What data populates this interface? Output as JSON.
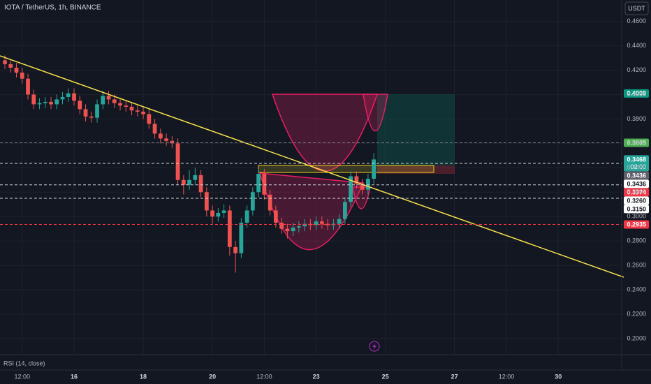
{
  "chart_data": {
    "type": "candlestick",
    "title": "IOTA / TetherUS, 1h, BINANCE",
    "currency": "USDT",
    "indicator": "RSI (14, close)",
    "countdown": "02:00",
    "up_color": "#26a69a",
    "down_color": "#ef5350",
    "grid": true,
    "x": [
      0,
      4,
      8,
      12,
      16,
      20,
      24,
      28,
      32,
      36,
      40,
      44,
      48,
      52,
      56,
      60,
      64,
      68,
      72,
      76,
      80,
      84,
      88,
      92,
      96,
      100,
      104,
      108,
      112,
      116,
      120,
      124,
      128,
      132,
      136,
      140,
      144,
      148,
      152,
      156,
      160,
      164,
      168,
      172,
      176,
      180,
      184,
      188,
      192,
      196,
      200,
      204,
      208,
      212,
      216,
      220,
      224,
      228,
      232,
      236,
      240,
      244,
      248,
      252,
      256
    ],
    "open": [
      0.428,
      0.425,
      0.422,
      0.418,
      0.413,
      0.4,
      0.392,
      0.393,
      0.394,
      0.392,
      0.396,
      0.398,
      0.401,
      0.395,
      0.388,
      0.382,
      0.381,
      0.392,
      0.399,
      0.396,
      0.393,
      0.391,
      0.39,
      0.387,
      0.386,
      0.384,
      0.376,
      0.368,
      0.364,
      0.362,
      0.36,
      0.33,
      0.326,
      0.33,
      0.334,
      0.32,
      0.305,
      0.3,
      0.303,
      0.305,
      0.275,
      0.27,
      0.295,
      0.305,
      0.32,
      0.335,
      0.318,
      0.305,
      0.295,
      0.29,
      0.288,
      0.291,
      0.292,
      0.294,
      0.293,
      0.296,
      0.294,
      0.293,
      0.294,
      0.298,
      0.312,
      0.333,
      0.327,
      0.322,
      0.331
    ],
    "high": [
      0.432,
      0.429,
      0.426,
      0.422,
      0.417,
      0.404,
      0.397,
      0.398,
      0.398,
      0.4,
      0.402,
      0.405,
      0.405,
      0.399,
      0.392,
      0.386,
      0.396,
      0.403,
      0.403,
      0.4,
      0.397,
      0.395,
      0.394,
      0.391,
      0.39,
      0.388,
      0.38,
      0.372,
      0.368,
      0.366,
      0.364,
      0.334,
      0.338,
      0.34,
      0.338,
      0.324,
      0.309,
      0.307,
      0.31,
      0.309,
      0.28,
      0.299,
      0.309,
      0.324,
      0.339,
      0.339,
      0.322,
      0.309,
      0.299,
      0.294,
      0.295,
      0.296,
      0.298,
      0.298,
      0.3,
      0.3,
      0.298,
      0.298,
      0.302,
      0.316,
      0.337,
      0.337,
      0.331,
      0.335,
      0.352
    ],
    "low": [
      0.421,
      0.418,
      0.414,
      0.409,
      0.396,
      0.388,
      0.388,
      0.389,
      0.388,
      0.388,
      0.392,
      0.394,
      0.391,
      0.384,
      0.378,
      0.377,
      0.377,
      0.388,
      0.392,
      0.389,
      0.387,
      0.386,
      0.383,
      0.382,
      0.38,
      0.372,
      0.364,
      0.36,
      0.358,
      0.356,
      0.326,
      0.318,
      0.322,
      0.326,
      0.316,
      0.3,
      0.294,
      0.296,
      0.299,
      0.268,
      0.254,
      0.266,
      0.291,
      0.301,
      0.316,
      0.314,
      0.301,
      0.291,
      0.286,
      0.282,
      0.284,
      0.287,
      0.288,
      0.289,
      0.289,
      0.29,
      0.289,
      0.289,
      0.29,
      0.294,
      0.308,
      0.323,
      0.318,
      0.318,
      0.327
    ],
    "close": [
      0.425,
      0.422,
      0.418,
      0.413,
      0.4,
      0.392,
      0.393,
      0.394,
      0.392,
      0.396,
      0.398,
      0.401,
      0.395,
      0.388,
      0.382,
      0.381,
      0.392,
      0.399,
      0.396,
      0.393,
      0.391,
      0.39,
      0.387,
      0.386,
      0.384,
      0.376,
      0.368,
      0.364,
      0.362,
      0.36,
      0.33,
      0.326,
      0.33,
      0.334,
      0.32,
      0.305,
      0.3,
      0.303,
      0.305,
      0.275,
      0.27,
      0.295,
      0.305,
      0.32,
      0.335,
      0.318,
      0.305,
      0.295,
      0.29,
      0.288,
      0.291,
      0.292,
      0.294,
      0.293,
      0.296,
      0.294,
      0.293,
      0.294,
      0.298,
      0.312,
      0.333,
      0.327,
      0.322,
      0.331,
      0.3468
    ],
    "xlim": [
      -3.4,
      428
    ],
    "ylim": [
      0.1868,
      0.4775
    ],
    "xticks": [
      {
        "value": 12,
        "label": "12:00"
      },
      {
        "value": 48,
        "label": "16"
      },
      {
        "value": 96,
        "label": "18"
      },
      {
        "value": 144,
        "label": "20"
      },
      {
        "value": 180,
        "label": "12:00"
      },
      {
        "value": 216,
        "label": "23"
      },
      {
        "value": 264,
        "label": "25"
      },
      {
        "value": 312,
        "label": "27"
      },
      {
        "value": 348,
        "label": "12:00"
      },
      {
        "value": 384,
        "label": "30"
      }
    ],
    "yticks": [
      {
        "value": 0.46,
        "label": "0.4600"
      },
      {
        "value": 0.44,
        "label": "0.4400"
      },
      {
        "value": 0.42,
        "label": "0.4200"
      },
      {
        "value": 0.4,
        "label": "0.4000"
      },
      {
        "value": 0.38,
        "label": "0.3800"
      },
      {
        "value": 0.36,
        "label": "0.3600"
      },
      {
        "value": 0.34,
        "label": "0.3400"
      },
      {
        "value": 0.32,
        "label": "0.3200"
      },
      {
        "value": 0.3,
        "label": "0.3000"
      },
      {
        "value": 0.28,
        "label": "0.2800"
      },
      {
        "value": 0.26,
        "label": "0.2600"
      },
      {
        "value": 0.24,
        "label": "0.2400"
      },
      {
        "value": 0.22,
        "label": "0.2200"
      },
      {
        "value": 0.2,
        "label": "0.2000"
      }
    ],
    "price_labels": [
      {
        "value": 0.4009,
        "label": "0.4009",
        "color": "#089981",
        "text_color": "#ffffff",
        "dashed": false
      },
      {
        "value": 0.3605,
        "label": "0.3605",
        "color": "#4caf50",
        "text_color": "#ffffff",
        "dashed": true,
        "line_color": "#787b86"
      },
      {
        "value": 0.3468,
        "label": "0.3468",
        "color": "#26a69a",
        "text_color": "#ffffff",
        "dashed": false,
        "countdown": true
      },
      {
        "value": 0.3436,
        "label": "0.3436",
        "color": "#5d606b",
        "text_color": "#ffffff",
        "dashed": false
      },
      {
        "value": 0.3436,
        "label": "0.3436",
        "color": "#ffffff",
        "text_color": "#131722",
        "dashed": true,
        "line_color": "#d1d4dc"
      },
      {
        "value": 0.3374,
        "label": "0.3374",
        "color": "#f23645",
        "text_color": "#ffffff",
        "dashed": false
      },
      {
        "value": 0.326,
        "label": "0.3260",
        "color": "#ffffff",
        "text_color": "#131722",
        "dashed": true,
        "line_color": "#d1d4dc"
      },
      {
        "value": 0.315,
        "label": "0.3150",
        "color": "#ffffff",
        "text_color": "#131722",
        "dashed": true,
        "line_color": "#d1d4dc"
      },
      {
        "value": 0.2935,
        "label": "0.2935",
        "color": "#f23645",
        "text_color": "#ffffff",
        "dashed": true,
        "line_color": "#f23645"
      }
    ]
  }
}
